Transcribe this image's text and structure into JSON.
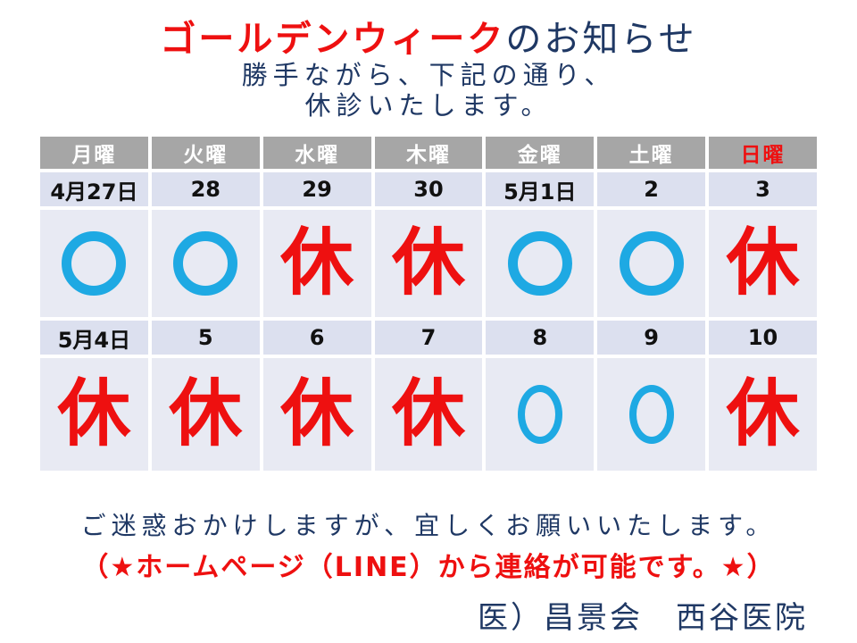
{
  "title": {
    "highlight": "ゴールデンウィーク",
    "rest": "のお知らせ"
  },
  "subtitle_lines": [
    "勝手ながら、下記の通り、",
    "休診いたします。"
  ],
  "calendar": {
    "day_headers": [
      "月曜",
      "火曜",
      "水曜",
      "木曜",
      "金曜",
      "土曜",
      "日曜"
    ],
    "sunday_index": 6,
    "open_symbol": "○",
    "closed_symbol": "休",
    "weeks": [
      {
        "dates": [
          "4月27日",
          "28",
          "29",
          "30",
          "5月1日",
          "2",
          "3"
        ],
        "status": [
          "○",
          "○",
          "休",
          "休",
          "○",
          "○",
          "休"
        ]
      },
      {
        "dates": [
          "5月4日",
          "5",
          "6",
          "7",
          "8",
          "9",
          "10"
        ],
        "status": [
          "休",
          "休",
          "休",
          "休",
          "○",
          "○",
          "休"
        ]
      }
    ]
  },
  "footer": {
    "apology": "ご迷惑おかけしますが、宜しくお願いいたします。",
    "contact": "（★ホームページ（LINE）から連絡が可能です。★）",
    "clinic": "医）昌景会　西谷医院"
  },
  "colors": {
    "accent_red": "#ee1010",
    "navy": "#1f3864",
    "circle_blue": "#1ea9e3",
    "header_gray": "#a6a6a6",
    "date_row_bg": "#dce0ef",
    "status_row_bg": "#e8eaf3"
  }
}
